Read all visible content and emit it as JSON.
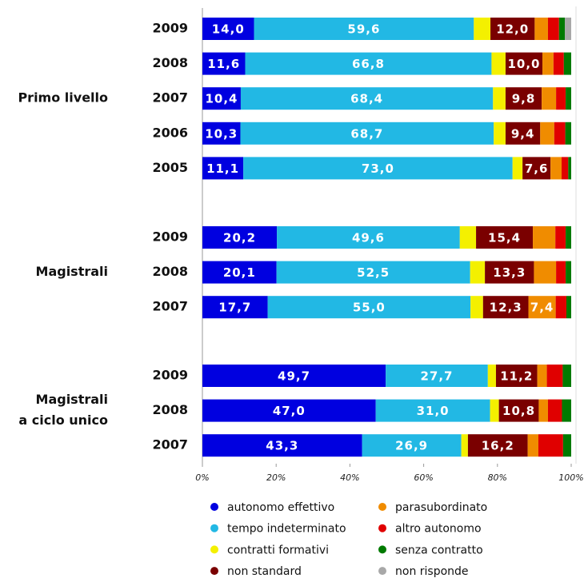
{
  "chart_data": {
    "type": "bar",
    "orientation": "horizontal",
    "stacked": true,
    "xlim": [
      0,
      100
    ],
    "xticks": [
      {
        "value": 0,
        "label": "0%"
      },
      {
        "value": 20,
        "label": "20%"
      },
      {
        "value": 40,
        "label": "40%"
      },
      {
        "value": 60,
        "label": "60%"
      },
      {
        "value": 80,
        "label": "80%"
      },
      {
        "value": 100,
        "label": "100%"
      }
    ],
    "series": [
      {
        "name": "autonomo effettivo",
        "color": "#0000e0"
      },
      {
        "name": "tempo indeterminato",
        "color": "#22b8e4"
      },
      {
        "name": "contratti formativi",
        "color": "#f4f000"
      },
      {
        "name": "non standard",
        "color": "#7a0000"
      },
      {
        "name": "parasubordinato",
        "color": "#f08c00"
      },
      {
        "name": "altro autonomo",
        "color": "#e00000"
      },
      {
        "name": "senza contratto",
        "color": "#007a00"
      },
      {
        "name": "non risponde",
        "color": "#a8a8a8"
      }
    ],
    "groups": [
      {
        "label": [
          "Primo livello"
        ],
        "categories": [
          "2009",
          "2008",
          "2007",
          "2006",
          "2005"
        ],
        "series": [
          {
            "values": [
              14.0,
              11.6,
              10.4,
              10.3,
              11.1
            ],
            "value_labels": [
              "14,0",
              "11,6",
              "10,4",
              "10,3",
              "11,1"
            ]
          },
          {
            "values": [
              59.6,
              66.8,
              68.4,
              68.7,
              73.0
            ],
            "value_labels": [
              "59,6",
              "66,8",
              "68,4",
              "68,7",
              "73,0"
            ]
          },
          {
            "values": [
              4.5,
              3.8,
              3.4,
              3.2,
              2.7
            ]
          },
          {
            "values": [
              12.0,
              10.0,
              9.8,
              9.4,
              7.6
            ],
            "value_labels": [
              "12,0",
              "10,0",
              "9,8",
              "9,4",
              "7,6"
            ]
          },
          {
            "values": [
              3.6,
              3.0,
              3.9,
              3.8,
              3.0
            ]
          },
          {
            "values": [
              3.0,
              2.8,
              2.6,
              3.0,
              1.8
            ]
          },
          {
            "values": [
              1.6,
              2.0,
              1.5,
              1.6,
              0.8
            ]
          },
          {
            "values": [
              1.7,
              0,
              0,
              0,
              0
            ]
          }
        ]
      },
      {
        "label": [
          "Magistrali"
        ],
        "categories": [
          "2009",
          "2008",
          "2007"
        ],
        "series": [
          {
            "values": [
              20.2,
              20.1,
              17.7
            ],
            "value_labels": [
              "20,2",
              "20,1",
              "17,7"
            ]
          },
          {
            "values": [
              49.6,
              52.5,
              55.0
            ],
            "value_labels": [
              "49,6",
              "52,5",
              "55,0"
            ]
          },
          {
            "values": [
              4.4,
              4.0,
              3.4
            ]
          },
          {
            "values": [
              15.4,
              13.3,
              12.3
            ],
            "value_labels": [
              "15,4",
              "13,3",
              "12,3"
            ]
          },
          {
            "values": [
              6.1,
              6.0,
              7.4
            ],
            "value_labels": [
              null,
              null,
              "7,4"
            ]
          },
          {
            "values": [
              2.8,
              2.6,
              2.9
            ]
          },
          {
            "values": [
              1.5,
              1.5,
              1.3
            ]
          },
          {
            "values": [
              0,
              0,
              0
            ]
          }
        ]
      },
      {
        "label": [
          "Magistrali",
          "a ciclo unico"
        ],
        "categories": [
          "2009",
          "2008",
          "2007"
        ],
        "series": [
          {
            "values": [
              49.7,
              47.0,
              43.3
            ],
            "value_labels": [
              "49,7",
              "47,0",
              "43,3"
            ]
          },
          {
            "values": [
              27.7,
              31.0,
              26.9
            ],
            "value_labels": [
              "27,7",
              "31,0",
              "26,9"
            ]
          },
          {
            "values": [
              2.2,
              2.4,
              1.8
            ]
          },
          {
            "values": [
              11.2,
              10.8,
              16.2
            ],
            "value_labels": [
              "11,2",
              "10,8",
              "16,2"
            ]
          },
          {
            "values": [
              2.6,
              2.5,
              2.9
            ]
          },
          {
            "values": [
              4.3,
              3.8,
              6.7
            ]
          },
          {
            "values": [
              2.3,
              2.5,
              2.2
            ]
          },
          {
            "values": [
              0,
              0,
              0
            ]
          }
        ]
      }
    ]
  }
}
